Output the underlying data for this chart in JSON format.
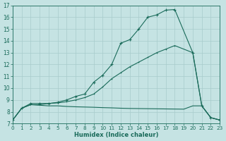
{
  "xlabel": "Humidex (Indice chaleur)",
  "bg_color": "#c5e3e3",
  "grid_color": "#a8cccc",
  "line_color": "#1a6b5a",
  "xlim": [
    0,
    23
  ],
  "ylim": [
    7,
    17
  ],
  "xticks": [
    0,
    1,
    2,
    3,
    4,
    5,
    6,
    7,
    8,
    9,
    10,
    11,
    12,
    13,
    14,
    15,
    16,
    17,
    18,
    19,
    20,
    21,
    22,
    23
  ],
  "yticks": [
    7,
    8,
    9,
    10,
    11,
    12,
    13,
    14,
    15,
    16,
    17
  ],
  "curve1_x": [
    0,
    1,
    2,
    3,
    4,
    5,
    6,
    7,
    8,
    9,
    10,
    11,
    12,
    13,
    14,
    15,
    16,
    17,
    18,
    20,
    21,
    22,
    23
  ],
  "curve1_y": [
    7.3,
    8.3,
    8.7,
    8.7,
    8.7,
    8.8,
    9.0,
    9.3,
    9.5,
    10.5,
    11.1,
    12.0,
    13.8,
    14.1,
    15.0,
    16.0,
    16.2,
    16.6,
    16.65,
    13.0,
    8.5,
    7.5,
    7.3
  ],
  "curve2_x": [
    0,
    1,
    2,
    3,
    4,
    5,
    6,
    7,
    8,
    9,
    10,
    11,
    12,
    13,
    14,
    15,
    16,
    17,
    18,
    20,
    21,
    22,
    23
  ],
  "curve2_y": [
    7.3,
    8.3,
    8.6,
    8.6,
    8.7,
    8.75,
    8.85,
    9.0,
    9.2,
    9.5,
    10.1,
    10.8,
    11.3,
    11.8,
    12.2,
    12.6,
    13.0,
    13.3,
    13.6,
    13.0,
    8.5,
    7.5,
    7.3
  ],
  "curve3_x": [
    0,
    1,
    2,
    3,
    4,
    5,
    6,
    7,
    8,
    9,
    10,
    11,
    12,
    13,
    14,
    15,
    16,
    17,
    18,
    19,
    20,
    21,
    22,
    23
  ],
  "curve3_y": [
    7.3,
    8.3,
    8.6,
    8.55,
    8.5,
    8.5,
    8.45,
    8.42,
    8.4,
    8.38,
    8.35,
    8.33,
    8.3,
    8.28,
    8.27,
    8.26,
    8.25,
    8.24,
    8.23,
    8.22,
    8.5,
    8.5,
    7.5,
    7.3
  ]
}
